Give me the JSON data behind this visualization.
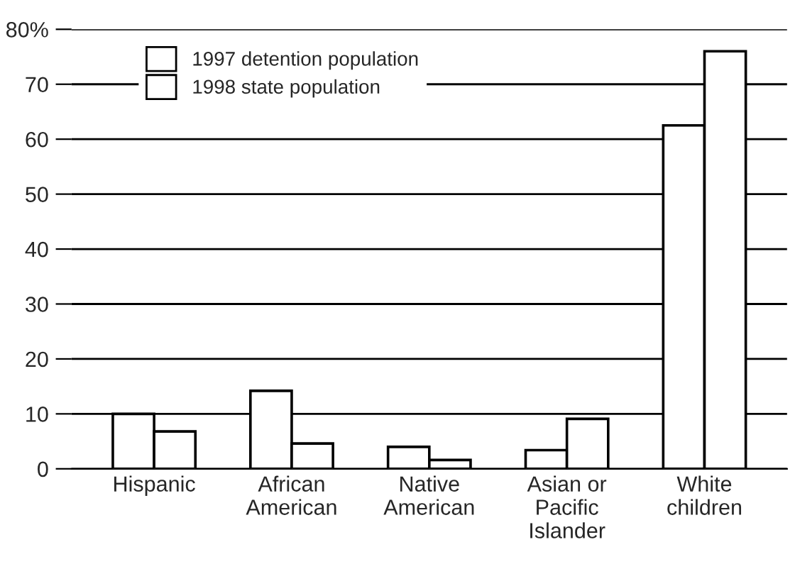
{
  "chart_data": {
    "type": "bar",
    "categories": [
      "Hispanic",
      "African\nAmerican",
      "Native\nAmerican",
      "Asian or\nPacific\nIslander",
      "White\nchildren"
    ],
    "series": [
      {
        "name": "1997 detention population",
        "color": "#ffffff",
        "values": [
          10,
          14.2,
          4,
          3.4,
          62.5
        ]
      },
      {
        "name": "1998 state population",
        "color": "#ffffff",
        "values": [
          6.8,
          4.6,
          1.6,
          9.1,
          76
        ]
      }
    ],
    "ylim": [
      0,
      80
    ],
    "yticks": [
      0,
      10,
      20,
      30,
      40,
      50,
      60,
      70,
      {
        "value": 80,
        "label": "80%"
      }
    ],
    "grid": "y",
    "legend": "top left"
  }
}
